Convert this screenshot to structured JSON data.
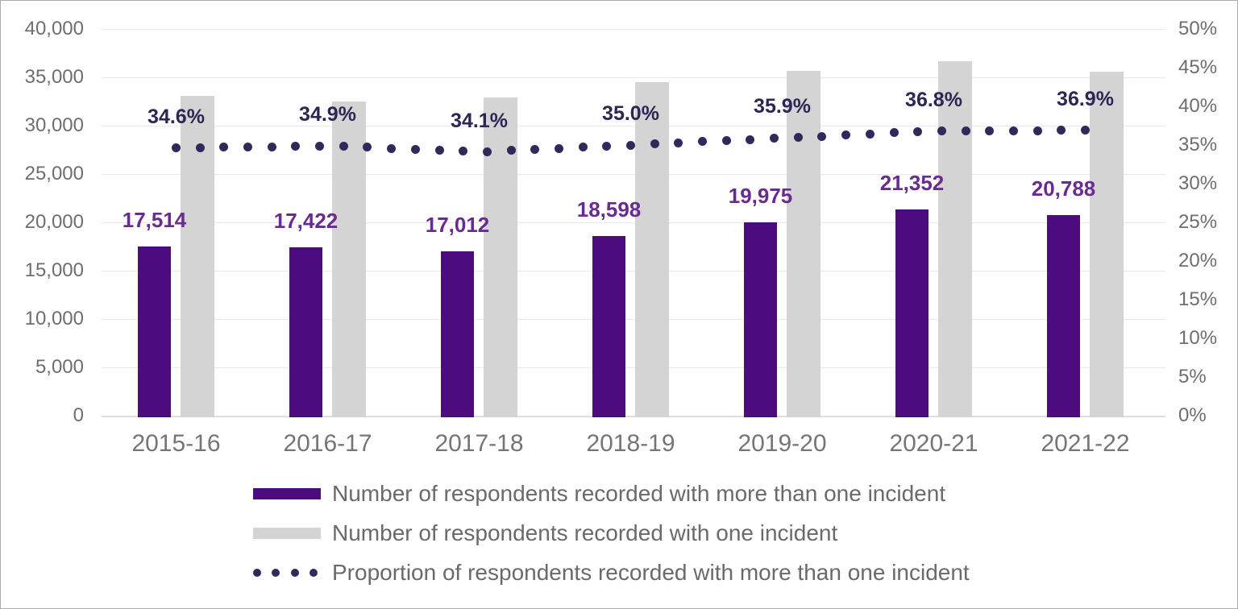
{
  "chart_data": {
    "type": "bar",
    "subtype": "grouped bars with dotted line on secondary axis",
    "title": "",
    "categories": [
      "2015-16",
      "2016-17",
      "2017-18",
      "2018-19",
      "2019-20",
      "2020-21",
      "2021-22"
    ],
    "series": [
      {
        "name": "Number of respondents recorded with more than one incident",
        "type": "bar",
        "axis": "left",
        "color": "#4d0b80",
        "values": [
          17514,
          17422,
          17012,
          18598,
          19975,
          21352,
          20788
        ],
        "data_labels": [
          "17,514",
          "17,422",
          "17,012",
          "18,598",
          "19,975",
          "21,352",
          "20,788"
        ],
        "data_label_color": "#6a2b90"
      },
      {
        "name": "Number of respondents recorded with one incident",
        "type": "bar",
        "axis": "left",
        "color": "#d4d4d4",
        "estimated": true,
        "values": [
          33100,
          32500,
          32880,
          34540,
          35660,
          36670,
          35550
        ]
      },
      {
        "name": "Proportion of respondents recorded with more than one incident",
        "type": "dotted-line",
        "axis": "right",
        "color": "#2f2a5b",
        "values": [
          34.6,
          34.9,
          34.1,
          35.0,
          35.9,
          36.8,
          36.9
        ],
        "data_labels": [
          "34.6%",
          "34.9%",
          "34.1%",
          "35.0%",
          "35.9%",
          "36.8%",
          "36.9%"
        ],
        "data_label_color": "#2b2653"
      }
    ],
    "left_axis": {
      "min": 0,
      "max": 40000,
      "step": 5000,
      "tick_labels": [
        "0",
        "5,000",
        "10,000",
        "15,000",
        "20,000",
        "25,000",
        "30,000",
        "35,000",
        "40,000"
      ]
    },
    "right_axis": {
      "min": 0,
      "max": 50,
      "step": 5,
      "tick_labels": [
        "0%",
        "5%",
        "10%",
        "15%",
        "20%",
        "25%",
        "30%",
        "35%",
        "40%",
        "45%",
        "50%"
      ]
    },
    "grid": true,
    "legend_position": "bottom"
  }
}
